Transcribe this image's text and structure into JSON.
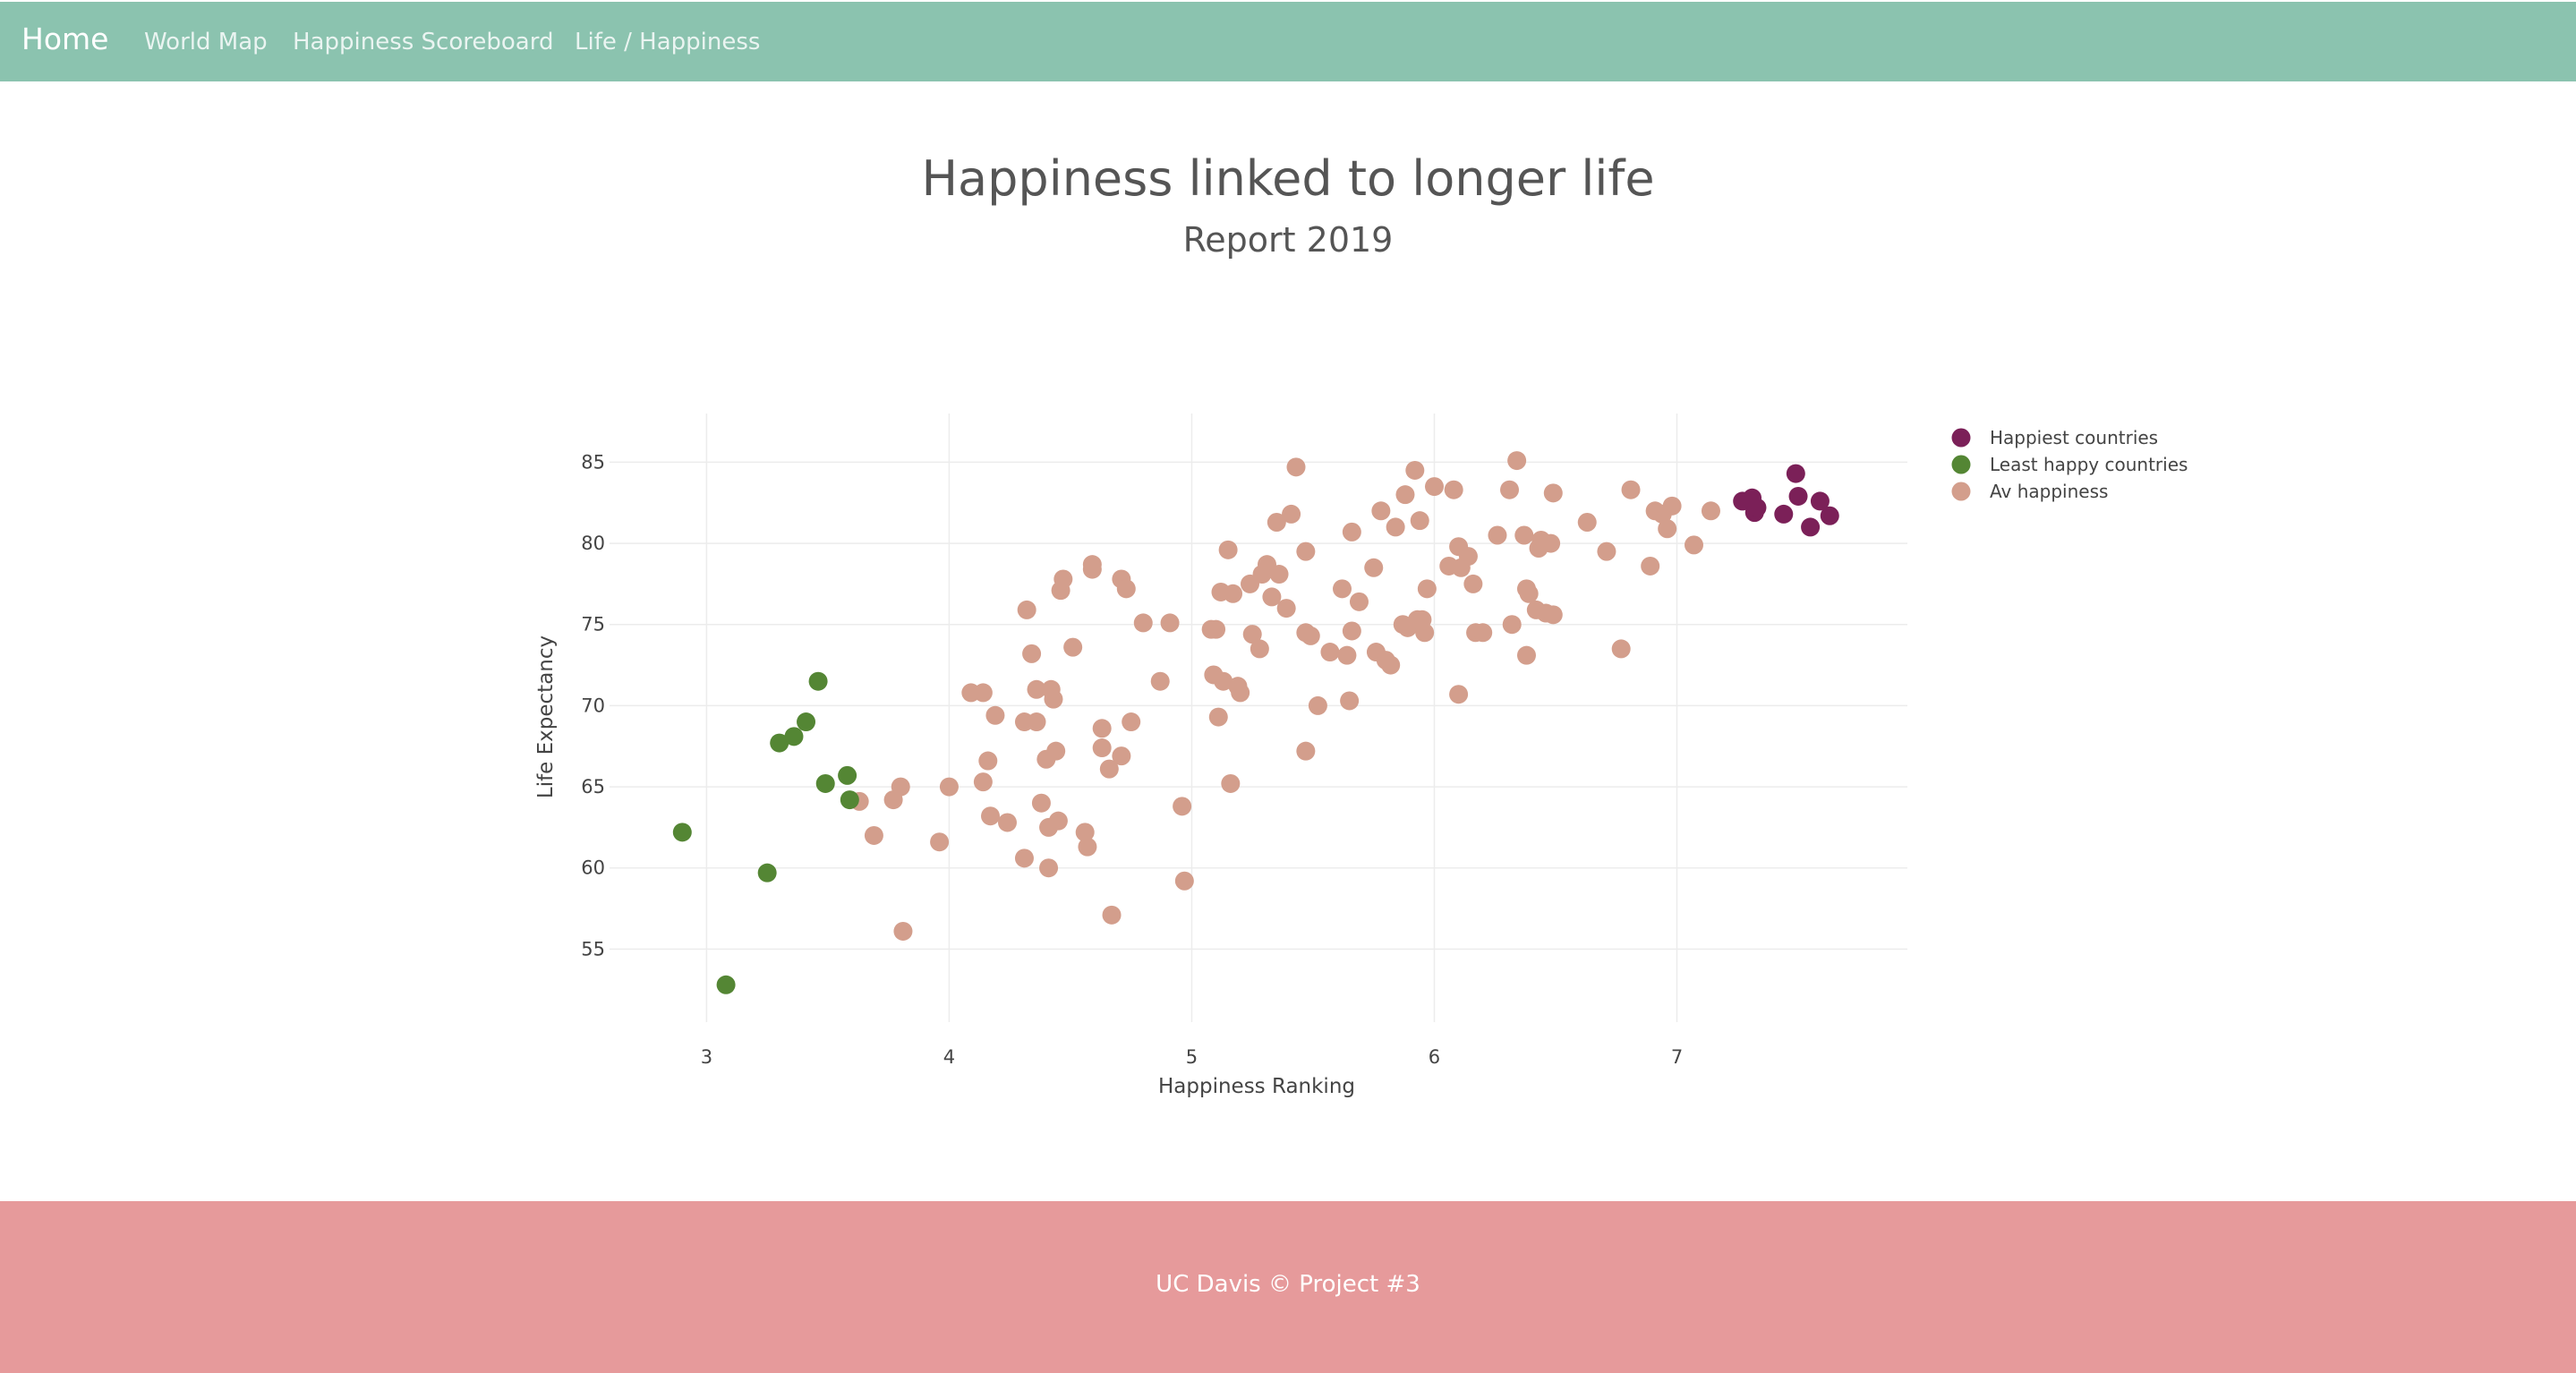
{
  "navbar": {
    "brand": "Home",
    "links": [
      "World Map",
      "Happiness Scoreboard",
      "Life / Happiness"
    ]
  },
  "colors": {
    "navbar_bg": "#8bc3af",
    "footer_bg": "#e69a9b",
    "happiest": "#7b2058",
    "least_happy": "#548634",
    "average": "#d39e8c"
  },
  "footer": {
    "text": "UC Davis © Project #3"
  },
  "chart_data": {
    "type": "scatter",
    "title": "Happiness linked to longer life",
    "subtitle": "Report 2019",
    "xlabel": "Happiness Ranking",
    "ylabel": "Life Expectancy",
    "xlim": [
      2.6,
      7.95
    ],
    "ylim": [
      50.5,
      88
    ],
    "xticks": [
      3,
      4,
      5,
      6,
      7
    ],
    "yticks": [
      55,
      60,
      65,
      70,
      75,
      80,
      85
    ],
    "grid": true,
    "legend_position": "top-right",
    "series": [
      {
        "name": "Happiest countries",
        "color": "#7b2058",
        "points": [
          [
            7.27,
            82.6
          ],
          [
            7.31,
            82.8
          ],
          [
            7.32,
            81.9
          ],
          [
            7.33,
            82.2
          ],
          [
            7.44,
            81.8
          ],
          [
            7.49,
            84.3
          ],
          [
            7.5,
            82.9
          ],
          [
            7.55,
            81.0
          ],
          [
            7.59,
            82.6
          ],
          [
            7.63,
            81.7
          ]
        ]
      },
      {
        "name": "Least happy countries",
        "color": "#548634",
        "points": [
          [
            2.9,
            62.2
          ],
          [
            3.08,
            52.8
          ],
          [
            3.25,
            59.7
          ],
          [
            3.3,
            67.7
          ],
          [
            3.36,
            68.1
          ],
          [
            3.41,
            69.0
          ],
          [
            3.46,
            71.5
          ],
          [
            3.49,
            65.2
          ],
          [
            3.58,
            65.7
          ],
          [
            3.59,
            64.2
          ]
        ]
      },
      {
        "name": "Av happiness",
        "color": "#d39e8c",
        "points": [
          [
            3.63,
            64.1
          ],
          [
            3.69,
            62.0
          ],
          [
            3.77,
            64.2
          ],
          [
            3.8,
            65.0
          ],
          [
            3.81,
            56.1
          ],
          [
            3.96,
            61.6
          ],
          [
            4.0,
            65.0
          ],
          [
            4.09,
            70.8
          ],
          [
            4.14,
            65.3
          ],
          [
            4.14,
            70.8
          ],
          [
            4.16,
            66.6
          ],
          [
            4.17,
            63.2
          ],
          [
            4.19,
            69.4
          ],
          [
            4.24,
            62.8
          ],
          [
            4.31,
            69.0
          ],
          [
            4.31,
            60.6
          ],
          [
            4.32,
            75.9
          ],
          [
            4.34,
            73.2
          ],
          [
            4.36,
            71.0
          ],
          [
            4.36,
            69.0
          ],
          [
            4.38,
            64.0
          ],
          [
            4.4,
            66.7
          ],
          [
            4.41,
            62.5
          ],
          [
            4.41,
            60.0
          ],
          [
            4.42,
            71.0
          ],
          [
            4.43,
            70.4
          ],
          [
            4.44,
            67.2
          ],
          [
            4.45,
            62.9
          ],
          [
            4.46,
            77.1
          ],
          [
            4.47,
            77.8
          ],
          [
            4.51,
            73.6
          ],
          [
            4.56,
            62.2
          ],
          [
            4.57,
            61.3
          ],
          [
            4.59,
            78.4
          ],
          [
            4.59,
            78.7
          ],
          [
            4.63,
            68.6
          ],
          [
            4.63,
            67.4
          ],
          [
            4.66,
            66.1
          ],
          [
            4.67,
            57.1
          ],
          [
            4.71,
            77.8
          ],
          [
            4.71,
            66.9
          ],
          [
            4.73,
            77.2
          ],
          [
            4.75,
            69.0
          ],
          [
            4.8,
            75.1
          ],
          [
            4.87,
            71.5
          ],
          [
            4.91,
            75.1
          ],
          [
            4.96,
            63.8
          ],
          [
            4.97,
            59.2
          ],
          [
            5.08,
            74.7
          ],
          [
            5.09,
            71.9
          ],
          [
            5.1,
            74.7
          ],
          [
            5.11,
            69.3
          ],
          [
            5.12,
            77.0
          ],
          [
            5.13,
            71.5
          ],
          [
            5.15,
            79.6
          ],
          [
            5.16,
            65.2
          ],
          [
            5.17,
            76.9
          ],
          [
            5.19,
            71.2
          ],
          [
            5.2,
            70.8
          ],
          [
            5.24,
            77.5
          ],
          [
            5.25,
            74.4
          ],
          [
            5.28,
            73.5
          ],
          [
            5.29,
            78.1
          ],
          [
            5.31,
            78.7
          ],
          [
            5.33,
            76.7
          ],
          [
            5.35,
            81.3
          ],
          [
            5.36,
            78.1
          ],
          [
            5.39,
            76.0
          ],
          [
            5.41,
            81.8
          ],
          [
            5.43,
            84.7
          ],
          [
            5.47,
            79.5
          ],
          [
            5.47,
            74.5
          ],
          [
            5.47,
            67.2
          ],
          [
            5.49,
            74.3
          ],
          [
            5.52,
            70.0
          ],
          [
            5.57,
            73.3
          ],
          [
            5.62,
            77.2
          ],
          [
            5.64,
            73.1
          ],
          [
            5.65,
            70.3
          ],
          [
            5.66,
            80.7
          ],
          [
            5.66,
            74.6
          ],
          [
            5.69,
            76.4
          ],
          [
            5.75,
            78.5
          ],
          [
            5.76,
            73.3
          ],
          [
            5.78,
            82.0
          ],
          [
            5.8,
            72.8
          ],
          [
            5.82,
            72.5
          ],
          [
            5.84,
            81.0
          ],
          [
            5.87,
            75.0
          ],
          [
            5.88,
            83.0
          ],
          [
            5.89,
            74.8
          ],
          [
            5.92,
            84.5
          ],
          [
            5.93,
            75.3
          ],
          [
            5.94,
            81.4
          ],
          [
            5.95,
            75.3
          ],
          [
            5.96,
            74.5
          ],
          [
            5.97,
            77.2
          ],
          [
            6.0,
            83.5
          ],
          [
            6.06,
            78.6
          ],
          [
            6.08,
            83.3
          ],
          [
            6.1,
            79.8
          ],
          [
            6.1,
            70.7
          ],
          [
            6.11,
            78.5
          ],
          [
            6.14,
            79.2
          ],
          [
            6.16,
            77.5
          ],
          [
            6.17,
            74.5
          ],
          [
            6.2,
            74.5
          ],
          [
            6.26,
            80.5
          ],
          [
            6.31,
            83.3
          ],
          [
            6.32,
            75.0
          ],
          [
            6.34,
            85.1
          ],
          [
            6.37,
            80.5
          ],
          [
            6.38,
            77.2
          ],
          [
            6.39,
            76.9
          ],
          [
            6.38,
            73.1
          ],
          [
            6.42,
            75.9
          ],
          [
            6.43,
            79.7
          ],
          [
            6.44,
            80.2
          ],
          [
            6.46,
            75.7
          ],
          [
            6.48,
            80.0
          ],
          [
            6.49,
            83.1
          ],
          [
            6.49,
            75.6
          ],
          [
            6.63,
            81.3
          ],
          [
            6.71,
            79.5
          ],
          [
            6.77,
            73.5
          ],
          [
            6.81,
            83.3
          ],
          [
            6.89,
            78.6
          ],
          [
            6.91,
            82.0
          ],
          [
            6.94,
            81.8
          ],
          [
            6.96,
            80.9
          ],
          [
            6.98,
            82.3
          ],
          [
            7.07,
            79.9
          ],
          [
            7.14,
            82.0
          ]
        ]
      }
    ]
  }
}
